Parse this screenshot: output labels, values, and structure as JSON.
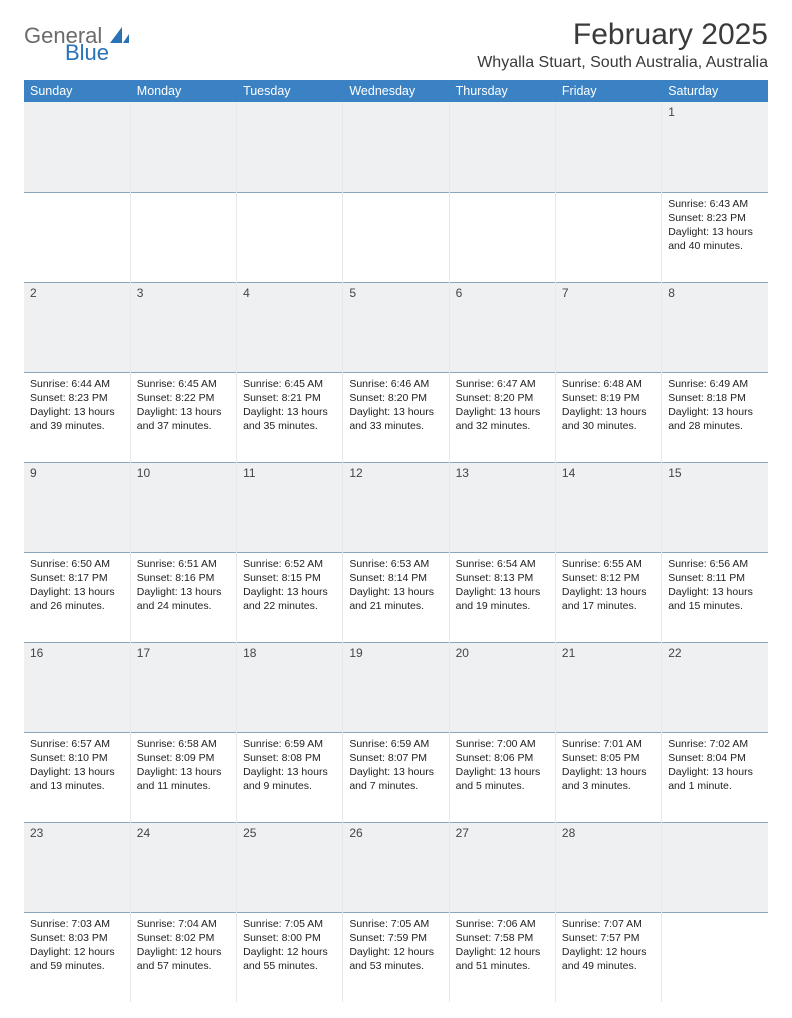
{
  "logo": {
    "text_top": "General",
    "text_bottom": "Blue"
  },
  "title": "February 2025",
  "location": "Whyalla Stuart, South Australia, Australia",
  "colors": {
    "header_bg": "#3A82C4",
    "header_fg": "#ffffff",
    "daynum_bg": "#eef0f1",
    "row_divider": "#8aa6bd",
    "logo_gray": "#6b6b6b",
    "logo_blue": "#2a72b5"
  },
  "weekdays": [
    "Sunday",
    "Monday",
    "Tuesday",
    "Wednesday",
    "Thursday",
    "Friday",
    "Saturday"
  ],
  "weeks": [
    [
      {
        "day": "",
        "sunrise": "",
        "sunset": "",
        "daylight": ""
      },
      {
        "day": "",
        "sunrise": "",
        "sunset": "",
        "daylight": ""
      },
      {
        "day": "",
        "sunrise": "",
        "sunset": "",
        "daylight": ""
      },
      {
        "day": "",
        "sunrise": "",
        "sunset": "",
        "daylight": ""
      },
      {
        "day": "",
        "sunrise": "",
        "sunset": "",
        "daylight": ""
      },
      {
        "day": "",
        "sunrise": "",
        "sunset": "",
        "daylight": ""
      },
      {
        "day": "1",
        "sunrise": "6:43 AM",
        "sunset": "8:23 PM",
        "daylight": "13 hours and 40 minutes."
      }
    ],
    [
      {
        "day": "2",
        "sunrise": "6:44 AM",
        "sunset": "8:23 PM",
        "daylight": "13 hours and 39 minutes."
      },
      {
        "day": "3",
        "sunrise": "6:45 AM",
        "sunset": "8:22 PM",
        "daylight": "13 hours and 37 minutes."
      },
      {
        "day": "4",
        "sunrise": "6:45 AM",
        "sunset": "8:21 PM",
        "daylight": "13 hours and 35 minutes."
      },
      {
        "day": "5",
        "sunrise": "6:46 AM",
        "sunset": "8:20 PM",
        "daylight": "13 hours and 33 minutes."
      },
      {
        "day": "6",
        "sunrise": "6:47 AM",
        "sunset": "8:20 PM",
        "daylight": "13 hours and 32 minutes."
      },
      {
        "day": "7",
        "sunrise": "6:48 AM",
        "sunset": "8:19 PM",
        "daylight": "13 hours and 30 minutes."
      },
      {
        "day": "8",
        "sunrise": "6:49 AM",
        "sunset": "8:18 PM",
        "daylight": "13 hours and 28 minutes."
      }
    ],
    [
      {
        "day": "9",
        "sunrise": "6:50 AM",
        "sunset": "8:17 PM",
        "daylight": "13 hours and 26 minutes."
      },
      {
        "day": "10",
        "sunrise": "6:51 AM",
        "sunset": "8:16 PM",
        "daylight": "13 hours and 24 minutes."
      },
      {
        "day": "11",
        "sunrise": "6:52 AM",
        "sunset": "8:15 PM",
        "daylight": "13 hours and 22 minutes."
      },
      {
        "day": "12",
        "sunrise": "6:53 AM",
        "sunset": "8:14 PM",
        "daylight": "13 hours and 21 minutes."
      },
      {
        "day": "13",
        "sunrise": "6:54 AM",
        "sunset": "8:13 PM",
        "daylight": "13 hours and 19 minutes."
      },
      {
        "day": "14",
        "sunrise": "6:55 AM",
        "sunset": "8:12 PM",
        "daylight": "13 hours and 17 minutes."
      },
      {
        "day": "15",
        "sunrise": "6:56 AM",
        "sunset": "8:11 PM",
        "daylight": "13 hours and 15 minutes."
      }
    ],
    [
      {
        "day": "16",
        "sunrise": "6:57 AM",
        "sunset": "8:10 PM",
        "daylight": "13 hours and 13 minutes."
      },
      {
        "day": "17",
        "sunrise": "6:58 AM",
        "sunset": "8:09 PM",
        "daylight": "13 hours and 11 minutes."
      },
      {
        "day": "18",
        "sunrise": "6:59 AM",
        "sunset": "8:08 PM",
        "daylight": "13 hours and 9 minutes."
      },
      {
        "day": "19",
        "sunrise": "6:59 AM",
        "sunset": "8:07 PM",
        "daylight": "13 hours and 7 minutes."
      },
      {
        "day": "20",
        "sunrise": "7:00 AM",
        "sunset": "8:06 PM",
        "daylight": "13 hours and 5 minutes."
      },
      {
        "day": "21",
        "sunrise": "7:01 AM",
        "sunset": "8:05 PM",
        "daylight": "13 hours and 3 minutes."
      },
      {
        "day": "22",
        "sunrise": "7:02 AM",
        "sunset": "8:04 PM",
        "daylight": "13 hours and 1 minute."
      }
    ],
    [
      {
        "day": "23",
        "sunrise": "7:03 AM",
        "sunset": "8:03 PM",
        "daylight": "12 hours and 59 minutes."
      },
      {
        "day": "24",
        "sunrise": "7:04 AM",
        "sunset": "8:02 PM",
        "daylight": "12 hours and 57 minutes."
      },
      {
        "day": "25",
        "sunrise": "7:05 AM",
        "sunset": "8:00 PM",
        "daylight": "12 hours and 55 minutes."
      },
      {
        "day": "26",
        "sunrise": "7:05 AM",
        "sunset": "7:59 PM",
        "daylight": "12 hours and 53 minutes."
      },
      {
        "day": "27",
        "sunrise": "7:06 AM",
        "sunset": "7:58 PM",
        "daylight": "12 hours and 51 minutes."
      },
      {
        "day": "28",
        "sunrise": "7:07 AM",
        "sunset": "7:57 PM",
        "daylight": "12 hours and 49 minutes."
      },
      {
        "day": "",
        "sunrise": "",
        "sunset": "",
        "daylight": ""
      }
    ]
  ],
  "labels": {
    "sunrise": "Sunrise: ",
    "sunset": "Sunset: ",
    "daylight": "Daylight: "
  }
}
